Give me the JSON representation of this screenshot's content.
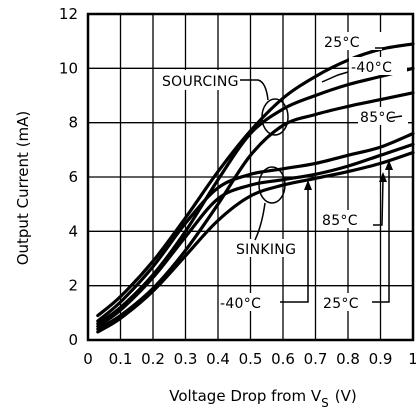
{
  "chart_data": {
    "type": "line",
    "xlabel": "Voltage Drop from V",
    "xlabel_sub": "S",
    "xlabel_unit": "(V)",
    "ylabel": "Output Current (mA)",
    "xlim": [
      0,
      1
    ],
    "ylim": [
      0,
      12
    ],
    "x_ticks": [
      "0",
      "0.1",
      "0.2",
      "0.3",
      "0.4",
      "0.5",
      "0.6",
      "0.7",
      "0.8",
      "0.9",
      "1"
    ],
    "y_ticks": [
      "0",
      "2",
      "4",
      "6",
      "8",
      "10",
      "12"
    ],
    "grid": true,
    "groups": {
      "sourcing": "SOURCING",
      "sinking": "SINKING"
    },
    "series": [
      {
        "group": "sourcing",
        "name": "25°C",
        "color": "#000000",
        "x": [
          0.03,
          0.1,
          0.2,
          0.3,
          0.4,
          0.5,
          0.6,
          0.7,
          0.8,
          0.9,
          1.0
        ],
        "y": [
          0.9,
          1.6,
          2.9,
          4.5,
          6.2,
          7.7,
          8.9,
          9.7,
          10.3,
          10.7,
          10.9
        ]
      },
      {
        "group": "sourcing",
        "name": "-40°C",
        "color": "#000000",
        "x": [
          0.03,
          0.1,
          0.2,
          0.3,
          0.4,
          0.5,
          0.6,
          0.7,
          0.8,
          0.9,
          1.0
        ],
        "y": [
          0.6,
          1.2,
          2.4,
          4.0,
          5.9,
          7.6,
          8.5,
          9.0,
          9.4,
          9.7,
          10.0
        ]
      },
      {
        "group": "sourcing",
        "name": "85°C",
        "color": "#000000",
        "x": [
          0.03,
          0.1,
          0.2,
          0.3,
          0.4,
          0.5,
          0.6,
          0.7,
          0.8,
          0.9,
          1.0
        ],
        "y": [
          0.4,
          0.9,
          1.9,
          3.3,
          5.0,
          6.8,
          7.9,
          8.3,
          8.6,
          8.85,
          9.1
        ]
      },
      {
        "group": "sinking",
        "name": "85°C",
        "color": "#000000",
        "x": [
          0.03,
          0.1,
          0.2,
          0.3,
          0.4,
          0.5,
          0.6,
          0.7,
          0.8,
          0.9,
          1.0
        ],
        "y": [
          0.7,
          1.4,
          2.7,
          4.3,
          5.6,
          6.1,
          6.3,
          6.5,
          6.8,
          7.1,
          7.6
        ]
      },
      {
        "group": "sinking",
        "name": "-40°C",
        "color": "#000000",
        "x": [
          0.03,
          0.1,
          0.2,
          0.3,
          0.4,
          0.5,
          0.6,
          0.7,
          0.8,
          0.9,
          1.0
        ],
        "y": [
          0.5,
          1.1,
          2.3,
          3.8,
          5.2,
          5.7,
          5.9,
          6.1,
          6.4,
          6.8,
          7.2
        ]
      },
      {
        "group": "sinking",
        "name": "25°C",
        "color": "#000000",
        "x": [
          0.03,
          0.1,
          0.2,
          0.3,
          0.4,
          0.5,
          0.6,
          0.7,
          0.8,
          0.9,
          1.0
        ],
        "y": [
          0.3,
          0.8,
          1.8,
          3.1,
          4.4,
          5.3,
          5.7,
          5.95,
          6.2,
          6.5,
          6.9
        ]
      }
    ]
  }
}
